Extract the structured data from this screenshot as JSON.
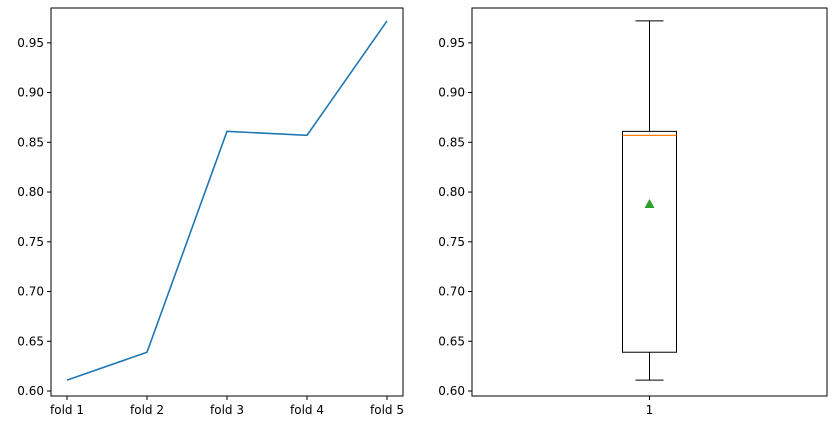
{
  "chart_data": [
    {
      "type": "line",
      "title": "",
      "xlabel": "",
      "ylabel": "",
      "categories": [
        "fold 1",
        "fold 2",
        "fold 3",
        "fold 4",
        "fold 5"
      ],
      "values": [
        0.611,
        0.639,
        0.861,
        0.857,
        0.972
      ],
      "ylim": [
        0.595,
        0.985
      ],
      "yticks": [
        "0.60",
        "0.65",
        "0.70",
        "0.75",
        "0.80",
        "0.85",
        "0.90",
        "0.95"
      ],
      "grid": false,
      "color": "#1f77b4"
    },
    {
      "type": "box",
      "title": "",
      "xlabel": "",
      "ylabel": "",
      "categories": [
        "1"
      ],
      "box": {
        "whisker_low": 0.611,
        "q1": 0.639,
        "median": 0.857,
        "q3": 0.861,
        "whisker_high": 0.972,
        "mean": 0.788
      },
      "ylim": [
        0.595,
        0.985
      ],
      "yticks": [
        "0.60",
        "0.65",
        "0.70",
        "0.75",
        "0.80",
        "0.85",
        "0.90",
        "0.95"
      ],
      "grid": false,
      "colors": {
        "box": "#000000",
        "median": "#ff7f0e",
        "mean": "#2ca02c"
      }
    }
  ]
}
